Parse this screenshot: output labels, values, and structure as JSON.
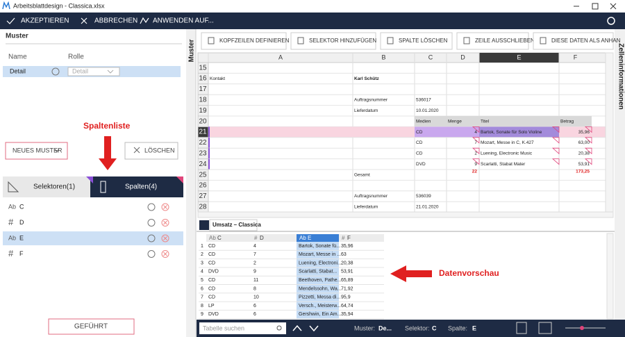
{
  "window": {
    "title": "Arbeitsblattdesign - Classica.xlsx"
  },
  "toolbar": {
    "buttons": [
      "AKZEPTIEREN",
      "ABBRECHEN",
      "ANWENDEN AUF..."
    ]
  },
  "left_panel": {
    "title": "Muster",
    "side_tab": "Muster",
    "columns": [
      "Name",
      "Rolle"
    ],
    "row": {
      "name": "Detail",
      "role": "Detail"
    },
    "annotation": "Spaltenliste",
    "new_button": "NEUES MUSTER",
    "delete_button": "LÖSCHEN",
    "tabs": [
      "Selektoren(1)",
      "Spalten(4)"
    ],
    "items": [
      {
        "type": "Ab",
        "name": "C"
      },
      {
        "type": "#",
        "name": "D"
      },
      {
        "type": "Ab",
        "name": "E"
      },
      {
        "type": "#",
        "name": "F"
      }
    ],
    "guided_button": "GEFÜHRT"
  },
  "sheet": {
    "toolbar": [
      "KOPFZEILEN DEFINIEREN",
      "SELEKTOR HINZUFÜGEN",
      "SPALTE LÖSCHEN",
      "ZEILE AUSSCHLIEBEN",
      "DIESE DATEN ALS ANHAN"
    ],
    "side_tab": "Zelleninformationen",
    "columns": [
      "A",
      "B",
      "C",
      "D",
      "E",
      "F"
    ],
    "rows": [
      {
        "number": 15,
        "cells": [
          null,
          null,
          null,
          null,
          null,
          null
        ]
      },
      {
        "number": 16,
        "cells": [
          "Kontakt",
          "Karl Schütz",
          null,
          null,
          null,
          null
        ]
      },
      {
        "number": 17,
        "cells": [
          null,
          null,
          null,
          null,
          null,
          null
        ]
      },
      {
        "number": 18,
        "cells": [
          null,
          "Auftragsnummer",
          "536017",
          null,
          null,
          null
        ]
      },
      {
        "number": 19,
        "cells": [
          null,
          "Lieferdatum",
          "10.01.2020",
          null,
          null,
          null
        ]
      },
      {
        "number": 20,
        "cells": [
          null,
          null,
          "Medien",
          "Menge",
          "Titel",
          "Betrag"
        ]
      },
      {
        "number": 21,
        "cells": [
          null,
          null,
          "CD",
          "4",
          "Bartok, Sonate für Solo Violine",
          "35,96"
        ]
      },
      {
        "number": 22,
        "cells": [
          null,
          null,
          "CD",
          "7",
          "Mozart, Messe in C, K.427",
          "63,00"
        ]
      },
      {
        "number": 23,
        "cells": [
          null,
          null,
          "CD",
          "2",
          "Luening, Electronic Music",
          "20,38"
        ]
      },
      {
        "number": 24,
        "cells": [
          null,
          null,
          "DVD",
          "9",
          "Scarlatti, Stabat Mater",
          "53,91"
        ]
      },
      {
        "number": 25,
        "cells": [
          null,
          "Gesamt",
          null,
          "22",
          null,
          "173,25"
        ]
      },
      {
        "number": 26,
        "cells": [
          null,
          null,
          null,
          null,
          null,
          null
        ]
      },
      {
        "number": 27,
        "cells": [
          null,
          "Auftragsnummer",
          "536039",
          null,
          null,
          null
        ]
      },
      {
        "number": 28,
        "cells": [
          null,
          "Lieferdatum",
          "21.01.2020",
          null,
          null,
          null
        ]
      }
    ],
    "tab": "Umsatz – Classica"
  },
  "preview": {
    "columns": [
      {
        "type": "Ab",
        "name": "C"
      },
      {
        "type": "#",
        "name": "D"
      },
      {
        "type": "Ab",
        "name": "E"
      },
      {
        "type": "#",
        "name": "F"
      }
    ],
    "rows": [
      [
        1,
        "CD",
        "4",
        "Bartok, Sonate fü...",
        "35,96"
      ],
      [
        2,
        "CD",
        "7",
        "Mozart, Messe in ...",
        "63"
      ],
      [
        3,
        "CD",
        "2",
        "Luening, Electroni...",
        "20,38"
      ],
      [
        4,
        "DVD",
        "9",
        "Scarlatti, Stabat...",
        "53,91"
      ],
      [
        5,
        "CD",
        "11",
        "Beethoven, Pathe...",
        "65,89"
      ],
      [
        6,
        "CD",
        "8",
        "Mendelssohn, Wa...",
        "71,92"
      ],
      [
        7,
        "CD",
        "10",
        "Pizzetti, Messa di...",
        "95,9"
      ],
      [
        8,
        "LP",
        "6",
        "Versch., Meisterw...",
        "64,74"
      ],
      [
        9,
        "DVD",
        "6",
        "Gershwin, Ein Am...",
        "35,94"
      ]
    ],
    "annotation": "Datenvorschau"
  },
  "status": {
    "search_placeholder": "Tabelle suchen",
    "items": [
      {
        "label": "Muster:",
        "value": "De..."
      },
      {
        "label": "Selektor:",
        "value": "C"
      },
      {
        "label": "Spalte:",
        "value": "E"
      }
    ]
  }
}
